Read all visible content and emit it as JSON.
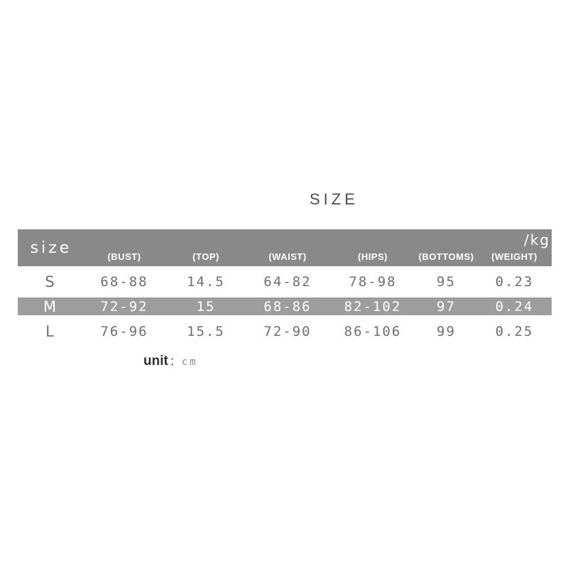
{
  "title": "SIZE",
  "chart_data": {
    "type": "table",
    "title": "SIZE",
    "columns": [
      "size",
      "(BUST)",
      "(TOP)",
      "(WAIST)",
      "(HIPS)",
      "(BOTTOMS)",
      "(WEIGHT)"
    ],
    "weight_unit_label": "/kg",
    "rows": [
      [
        "S",
        "68-88",
        "14.5",
        "64-82",
        "78-98",
        "95",
        "0.23"
      ],
      [
        "M",
        "72-92",
        "15",
        "68-86",
        "82-102",
        "97",
        "0.24"
      ],
      [
        "L",
        "76-96",
        "15.5",
        "72-90",
        "86-106",
        "99",
        "0.25"
      ]
    ],
    "highlighted_row_index": 1,
    "unit": "cm"
  },
  "unit_note": {
    "label": "unit",
    "separator": "："
  },
  "colors": {
    "header_bg": "#898989",
    "highlight_row_bg": "#9d9d9d",
    "header_text": "#ffffff",
    "data_text": "#6f6f6f",
    "title_text": "#4d4d4d",
    "unit_label_text": "#2f2f2f",
    "unit_value_text": "#8a8a8a"
  }
}
